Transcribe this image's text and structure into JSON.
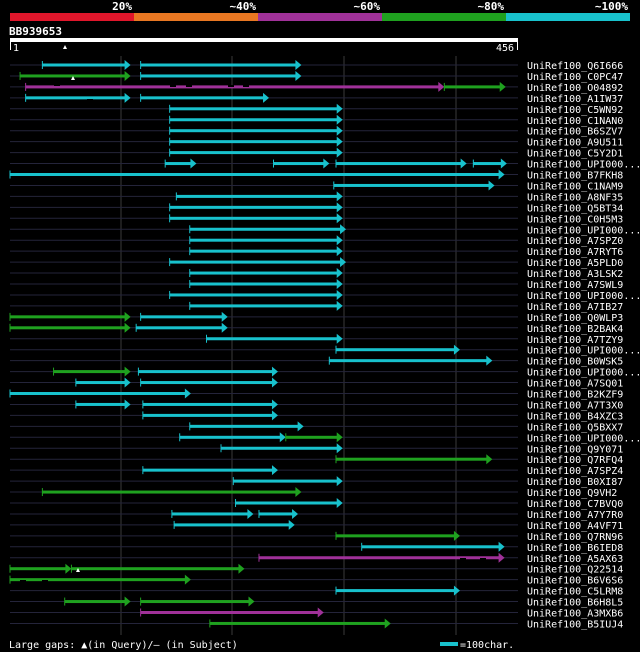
{
  "query": {
    "name": "BB939653",
    "start": "1",
    "end": "456",
    "length": 456
  },
  "identity_scale": [
    {
      "label": "20%",
      "color": "#e0162b"
    },
    {
      "label": "~40%",
      "color": "#e87722"
    },
    {
      "label": "~60%",
      "color": "#a03199"
    },
    {
      "label": "~80%",
      "color": "#1fa11f"
    },
    {
      "label": "~100%",
      "color": "#18c1cc"
    }
  ],
  "legend": {
    "gaps_text": "Large gaps: ▲(in Query)/– (in Subject)",
    "scale_text": "=100char."
  },
  "chart_data": {
    "type": "alignment",
    "x_range": [
      1,
      456
    ],
    "rows": [
      {
        "label": "UniRef100_Q6I666",
        "segs": [
          [
            30,
            109,
            "c"
          ],
          [
            118,
            262,
            "c"
          ]
        ]
      },
      {
        "label": "UniRef100_C0PC47",
        "segs": [
          [
            10,
            109,
            "g"
          ],
          [
            118,
            262,
            "c"
          ]
        ]
      },
      {
        "label": "UniRef100_O04892",
        "segs": [
          [
            15,
            390,
            "p"
          ],
          [
            390,
            445,
            "g"
          ]
        ]
      },
      {
        "label": "UniRef100_A1IW37",
        "segs": [
          [
            15,
            109,
            "c"
          ],
          [
            118,
            233,
            "c"
          ]
        ]
      },
      {
        "label": "UniRef100_C5WN92",
        "segs": [
          [
            144,
            299,
            "c"
          ]
        ]
      },
      {
        "label": "UniRef100_C1NAN0",
        "segs": [
          [
            144,
            299,
            "c"
          ]
        ]
      },
      {
        "label": "UniRef100_B6SZV7",
        "segs": [
          [
            144,
            299,
            "c"
          ]
        ]
      },
      {
        "label": "UniRef100_A9U511",
        "segs": [
          [
            144,
            299,
            "c"
          ]
        ]
      },
      {
        "label": "UniRef100_C5Y2D1",
        "segs": [
          [
            144,
            299,
            "c"
          ]
        ]
      },
      {
        "label": "UniRef100_UPI000...",
        "segs": [
          [
            140,
            168,
            "c"
          ],
          [
            237,
            287,
            "c"
          ],
          [
            293,
            410,
            "c"
          ],
          [
            416,
            446,
            "c"
          ]
        ]
      },
      {
        "label": "UniRef100_B7FKH8",
        "segs": [
          [
            1,
            444,
            "c"
          ]
        ]
      },
      {
        "label": "UniRef100_C1NAM9",
        "segs": [
          [
            291,
            435,
            "c"
          ]
        ]
      },
      {
        "label": "UniRef100_A8NF35",
        "segs": [
          [
            150,
            299,
            "c"
          ]
        ]
      },
      {
        "label": "UniRef100_Q5BT34",
        "segs": [
          [
            144,
            299,
            "c"
          ]
        ]
      },
      {
        "label": "UniRef100_C0H5M3",
        "segs": [
          [
            144,
            299,
            "c"
          ]
        ]
      },
      {
        "label": "UniRef100_UPI000...",
        "segs": [
          [
            162,
            302,
            "c"
          ]
        ]
      },
      {
        "label": "UniRef100_A7SPZ0",
        "segs": [
          [
            162,
            299,
            "c"
          ]
        ]
      },
      {
        "label": "UniRef100_A7RYT6",
        "segs": [
          [
            162,
            299,
            "c"
          ]
        ]
      },
      {
        "label": "UniRef100_A5PLD0",
        "segs": [
          [
            144,
            302,
            "c"
          ]
        ]
      },
      {
        "label": "UniRef100_A3LSK2",
        "segs": [
          [
            162,
            299,
            "c"
          ]
        ]
      },
      {
        "label": "UniRef100_A7SWL9",
        "segs": [
          [
            162,
            299,
            "c"
          ]
        ]
      },
      {
        "label": "UniRef100_UPI000...",
        "segs": [
          [
            144,
            299,
            "c"
          ]
        ]
      },
      {
        "label": "UniRef100_A7IB27",
        "segs": [
          [
            162,
            299,
            "c"
          ]
        ]
      },
      {
        "label": "UniRef100_Q0WLP3",
        "segs": [
          [
            1,
            109,
            "g"
          ],
          [
            118,
            196,
            "c"
          ]
        ]
      },
      {
        "label": "UniRef100_B2BAK4",
        "segs": [
          [
            1,
            109,
            "g"
          ],
          [
            114,
            196,
            "c"
          ]
        ]
      },
      {
        "label": "UniRef100_A7TZY9",
        "segs": [
          [
            177,
            299,
            "c"
          ]
        ]
      },
      {
        "label": "UniRef100_UPI000...",
        "segs": [
          [
            293,
            404,
            "c"
          ]
        ]
      },
      {
        "label": "UniRef100_B0WSK5",
        "segs": [
          [
            287,
            433,
            "c"
          ]
        ]
      },
      {
        "label": "UniRef100_UPI000...",
        "segs": [
          [
            40,
            109,
            "g"
          ],
          [
            116,
            241,
            "c"
          ]
        ]
      },
      {
        "label": "UniRef100_A7SQ01",
        "segs": [
          [
            60,
            109,
            "c"
          ],
          [
            118,
            241,
            "c"
          ]
        ]
      },
      {
        "label": "UniRef100_B2KZF9",
        "segs": [
          [
            1,
            163,
            "c"
          ]
        ]
      },
      {
        "label": "UniRef100_A7T3X0",
        "segs": [
          [
            60,
            109,
            "c"
          ],
          [
            120,
            241,
            "c"
          ]
        ]
      },
      {
        "label": "UniRef100_B4XZC3",
        "segs": [
          [
            120,
            241,
            "c"
          ]
        ]
      },
      {
        "label": "UniRef100_Q5BXX7",
        "segs": [
          [
            162,
            264,
            "c"
          ]
        ]
      },
      {
        "label": "UniRef100_UPI000...",
        "segs": [
          [
            153,
            248,
            "c"
          ],
          [
            248,
            299,
            "g"
          ]
        ]
      },
      {
        "label": "UniRef100_Q9Y071",
        "segs": [
          [
            190,
            299,
            "c"
          ]
        ]
      },
      {
        "label": "UniRef100_Q7RFQ4",
        "segs": [
          [
            293,
            433,
            "g"
          ]
        ]
      },
      {
        "label": "UniRef100_A7SPZ4",
        "segs": [
          [
            120,
            241,
            "c"
          ]
        ]
      },
      {
        "label": "UniRef100_B0XI87",
        "segs": [
          [
            201,
            299,
            "c"
          ]
        ]
      },
      {
        "label": "UniRef100_Q9VH2",
        "segs": [
          [
            30,
            262,
            "g"
          ]
        ]
      },
      {
        "label": "UniRef100_C7BVQ0",
        "segs": [
          [
            203,
            299,
            "c"
          ]
        ]
      },
      {
        "label": "UniRef100_A7Y7R0",
        "segs": [
          [
            146,
            219,
            "c"
          ],
          [
            224,
            259,
            "c"
          ]
        ]
      },
      {
        "label": "UniRef100_A4VF71",
        "segs": [
          [
            148,
            256,
            "c"
          ]
        ]
      },
      {
        "label": "UniRef100_Q7RN96",
        "segs": [
          [
            293,
            404,
            "g"
          ]
        ]
      },
      {
        "label": "UniRef100_B6IED8",
        "segs": [
          [
            316,
            444,
            "c"
          ]
        ]
      },
      {
        "label": "UniRef100_A5AX63",
        "segs": [
          [
            224,
            444,
            "p"
          ]
        ]
      },
      {
        "label": "UniRef100_Q22514",
        "segs": [
          [
            1,
            56,
            "g"
          ],
          [
            56,
            211,
            "g"
          ]
        ]
      },
      {
        "label": "UniRef100_B6V6S6",
        "segs": [
          [
            1,
            163,
            "g"
          ]
        ]
      },
      {
        "label": "UniRef100_C5LRM8",
        "segs": [
          [
            293,
            404,
            "c"
          ]
        ]
      },
      {
        "label": "UniRef100_B6H8L5",
        "segs": [
          [
            50,
            109,
            "g"
          ],
          [
            118,
            220,
            "g"
          ]
        ]
      },
      {
        "label": "UniRef100_A3MXB6",
        "segs": [
          [
            118,
            282,
            "p"
          ]
        ]
      },
      {
        "label": "UniRef100_B5IUJ4",
        "segs": [
          [
            180,
            342,
            "g"
          ]
        ]
      }
    ],
    "query_gaps": [
      [
        73,
        78
      ],
      [
        65,
        47
      ],
      [
        78,
        570
      ]
    ],
    "subject_gaps": [
      [
        54,
        85
      ],
      [
        87,
        100
      ],
      [
        170,
        86
      ],
      [
        186,
        86
      ],
      [
        228,
        86
      ],
      [
        243,
        86
      ],
      [
        480,
        559
      ],
      [
        460,
        559
      ],
      [
        20,
        581
      ],
      [
        42,
        581
      ]
    ]
  }
}
